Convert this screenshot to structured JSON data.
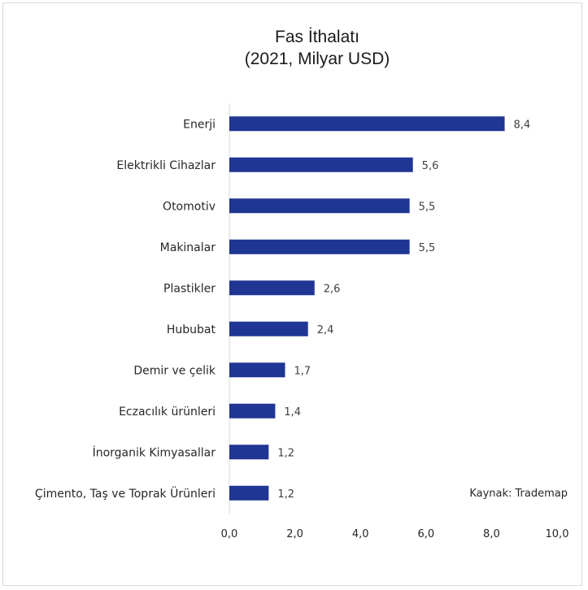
{
  "chart_data": {
    "type": "bar",
    "orientation": "horizontal",
    "title": "Fas İthalatı",
    "subtitle": "(2021, Milyar USD)",
    "categories": [
      "Enerji",
      "Elektrikli Cihazlar",
      "Otomotiv",
      "Makinalar",
      "Plastikler",
      "Hububat",
      "Demir ve çelik",
      "Eczacılık ürünleri",
      "İnorganik Kimyasallar",
      "Çimento, Taş ve Toprak Ürünleri"
    ],
    "values": [
      8.4,
      5.6,
      5.5,
      5.5,
      2.6,
      2.4,
      1.7,
      1.4,
      1.2,
      1.2
    ],
    "value_labels": [
      "8,4",
      "5,6",
      "5,5",
      "5,5",
      "2,6",
      "2,4",
      "1,7",
      "1,4",
      "1,2",
      "1,2"
    ],
    "xlim": [
      0,
      10
    ],
    "x_ticks": [
      0,
      2,
      4,
      6,
      8,
      10
    ],
    "x_tick_labels": [
      "0,0",
      "2,0",
      "4,0",
      "6,0",
      "8,0",
      "10,0"
    ],
    "xlabel": "",
    "ylabel": "",
    "grid": false,
    "bar_color": "#1F3694",
    "source_note": "Kaynak: Trademap"
  }
}
